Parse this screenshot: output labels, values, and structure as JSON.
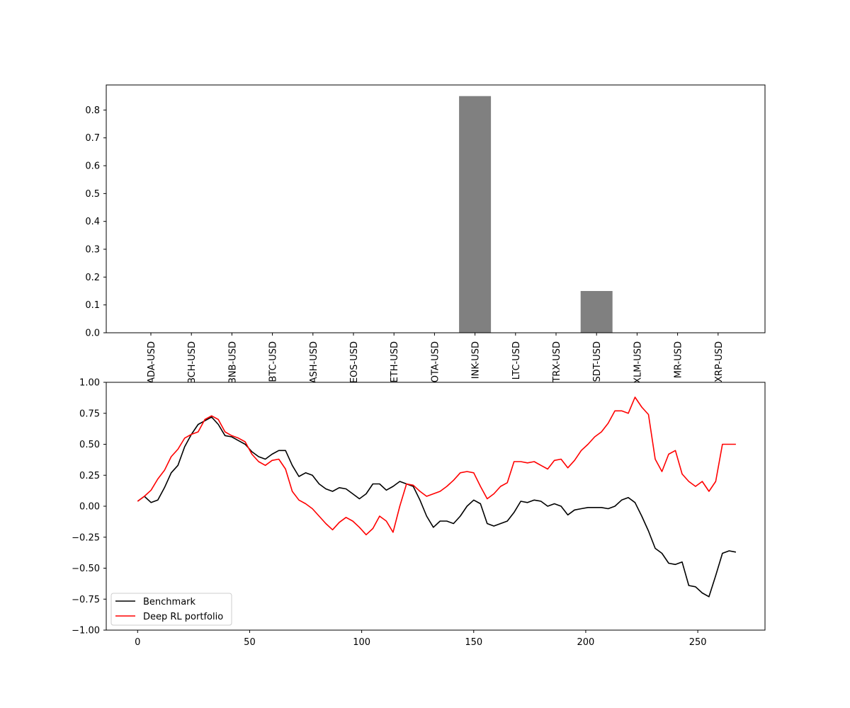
{
  "chart_data": [
    {
      "type": "bar",
      "categories": [
        "ADA-USD",
        "BCH-USD",
        "BNB-USD",
        "BTC-USD",
        "DASH-USD",
        "EOS-USD",
        "ETH-USD",
        "IOTA-USD",
        "LINK-USD",
        "LTC-USD",
        "TRX-USD",
        "USDT-USD",
        "XLM-USD",
        "XMR-USD",
        "XRP-USD"
      ],
      "tick_labels": [
        "ADA-USD",
        "BCH-USD",
        "BNB-USD",
        "BTC-USD",
        "ASH-USD",
        "EOS-USD",
        "ETH-USD",
        "OTA-USD",
        "INK-USD",
        "LTC-USD",
        "TRX-USD",
        "SDT-USD",
        "XLM-USD",
        "MR-USD",
        "XRP-USD"
      ],
      "values": [
        0,
        0,
        0,
        0,
        0,
        0,
        0,
        0,
        0.85,
        0,
        0,
        0.15,
        0,
        0,
        0
      ],
      "ylim": [
        0,
        0.89
      ],
      "yticks": [
        "0.0",
        "0.1",
        "0.2",
        "0.3",
        "0.4",
        "0.5",
        "0.6",
        "0.7",
        "0.8"
      ],
      "bar_color": "#808080",
      "grid": false
    },
    {
      "type": "line",
      "xlim": [
        -14,
        280
      ],
      "ylim": [
        -1.0,
        1.0
      ],
      "xticks": [
        "0",
        "50",
        "100",
        "150",
        "200",
        "250"
      ],
      "yticks": [
        "−1.00",
        "−0.75",
        "−0.50",
        "−0.25",
        "0.00",
        "0.25",
        "0.50",
        "0.75",
        "1.00"
      ],
      "legend_position": "lower-left",
      "grid": false,
      "series": [
        {
          "name": "Benchmark",
          "color": "#000000",
          "points": [
            [
              0,
              0.04
            ],
            [
              3,
              0.08
            ],
            [
              6,
              0.03
            ],
            [
              9,
              0.05
            ],
            [
              12,
              0.15
            ],
            [
              15,
              0.27
            ],
            [
              18,
              0.33
            ],
            [
              21,
              0.48
            ],
            [
              24,
              0.58
            ],
            [
              27,
              0.66
            ],
            [
              30,
              0.69
            ],
            [
              33,
              0.72
            ],
            [
              36,
              0.66
            ],
            [
              39,
              0.57
            ],
            [
              42,
              0.56
            ],
            [
              45,
              0.53
            ],
            [
              48,
              0.5
            ],
            [
              51,
              0.44
            ],
            [
              54,
              0.4
            ],
            [
              57,
              0.38
            ],
            [
              60,
              0.42
            ],
            [
              63,
              0.45
            ],
            [
              66,
              0.45
            ],
            [
              69,
              0.33
            ],
            [
              72,
              0.24
            ],
            [
              75,
              0.27
            ],
            [
              78,
              0.25
            ],
            [
              81,
              0.18
            ],
            [
              84,
              0.14
            ],
            [
              87,
              0.12
            ],
            [
              90,
              0.15
            ],
            [
              93,
              0.14
            ],
            [
              96,
              0.1
            ],
            [
              99,
              0.06
            ],
            [
              102,
              0.1
            ],
            [
              105,
              0.18
            ],
            [
              108,
              0.18
            ],
            [
              111,
              0.13
            ],
            [
              114,
              0.16
            ],
            [
              117,
              0.2
            ],
            [
              120,
              0.18
            ],
            [
              123,
              0.16
            ],
            [
              126,
              0.05
            ],
            [
              129,
              -0.08
            ],
            [
              132,
              -0.17
            ],
            [
              135,
              -0.12
            ],
            [
              138,
              -0.12
            ],
            [
              141,
              -0.14
            ],
            [
              144,
              -0.08
            ],
            [
              147,
              0.0
            ],
            [
              150,
              0.05
            ],
            [
              153,
              0.02
            ],
            [
              156,
              -0.14
            ],
            [
              159,
              -0.16
            ],
            [
              162,
              -0.14
            ],
            [
              165,
              -0.12
            ],
            [
              168,
              -0.05
            ],
            [
              171,
              0.04
            ],
            [
              174,
              0.03
            ],
            [
              177,
              0.05
            ],
            [
              180,
              0.04
            ],
            [
              183,
              0.0
            ],
            [
              186,
              0.02
            ],
            [
              189,
              0.0
            ],
            [
              192,
              -0.07
            ],
            [
              195,
              -0.03
            ],
            [
              198,
              -0.02
            ],
            [
              201,
              -0.01
            ],
            [
              204,
              -0.01
            ],
            [
              207,
              -0.01
            ],
            [
              210,
              -0.02
            ],
            [
              213,
              0.0
            ],
            [
              216,
              0.05
            ],
            [
              219,
              0.07
            ],
            [
              222,
              0.03
            ],
            [
              225,
              -0.08
            ],
            [
              228,
              -0.2
            ],
            [
              231,
              -0.34
            ],
            [
              234,
              -0.38
            ],
            [
              237,
              -0.46
            ],
            [
              240,
              -0.47
            ],
            [
              243,
              -0.45
            ],
            [
              246,
              -0.64
            ],
            [
              249,
              -0.65
            ],
            [
              252,
              -0.7
            ],
            [
              255,
              -0.73
            ],
            [
              258,
              -0.56
            ],
            [
              261,
              -0.38
            ],
            [
              264,
              -0.36
            ],
            [
              267,
              -0.37
            ]
          ]
        },
        {
          "name": "Deep RL portfolio",
          "color": "#ff0000",
          "points": [
            [
              0,
              0.04
            ],
            [
              3,
              0.08
            ],
            [
              6,
              0.13
            ],
            [
              9,
              0.22
            ],
            [
              12,
              0.29
            ],
            [
              15,
              0.4
            ],
            [
              18,
              0.46
            ],
            [
              21,
              0.55
            ],
            [
              24,
              0.58
            ],
            [
              27,
              0.6
            ],
            [
              30,
              0.7
            ],
            [
              33,
              0.73
            ],
            [
              36,
              0.7
            ],
            [
              39,
              0.6
            ],
            [
              42,
              0.57
            ],
            [
              45,
              0.55
            ],
            [
              48,
              0.52
            ],
            [
              51,
              0.42
            ],
            [
              54,
              0.36
            ],
            [
              57,
              0.33
            ],
            [
              60,
              0.37
            ],
            [
              63,
              0.38
            ],
            [
              66,
              0.3
            ],
            [
              69,
              0.12
            ],
            [
              72,
              0.05
            ],
            [
              75,
              0.02
            ],
            [
              78,
              -0.02
            ],
            [
              81,
              -0.08
            ],
            [
              84,
              -0.14
            ],
            [
              87,
              -0.19
            ],
            [
              90,
              -0.13
            ],
            [
              93,
              -0.09
            ],
            [
              96,
              -0.12
            ],
            [
              99,
              -0.17
            ],
            [
              102,
              -0.23
            ],
            [
              105,
              -0.18
            ],
            [
              108,
              -0.08
            ],
            [
              111,
              -0.12
            ],
            [
              114,
              -0.21
            ],
            [
              117,
              0.0
            ],
            [
              120,
              0.18
            ],
            [
              123,
              0.17
            ],
            [
              126,
              0.12
            ],
            [
              129,
              0.08
            ],
            [
              132,
              0.1
            ],
            [
              135,
              0.12
            ],
            [
              138,
              0.16
            ],
            [
              141,
              0.21
            ],
            [
              144,
              0.27
            ],
            [
              147,
              0.28
            ],
            [
              150,
              0.27
            ],
            [
              153,
              0.16
            ],
            [
              156,
              0.06
            ],
            [
              159,
              0.1
            ],
            [
              162,
              0.16
            ],
            [
              165,
              0.19
            ],
            [
              168,
              0.36
            ],
            [
              171,
              0.36
            ],
            [
              174,
              0.35
            ],
            [
              177,
              0.36
            ],
            [
              180,
              0.33
            ],
            [
              183,
              0.3
            ],
            [
              186,
              0.37
            ],
            [
              189,
              0.38
            ],
            [
              192,
              0.31
            ],
            [
              195,
              0.37
            ],
            [
              198,
              0.45
            ],
            [
              201,
              0.5
            ],
            [
              204,
              0.56
            ],
            [
              207,
              0.6
            ],
            [
              210,
              0.67
            ],
            [
              213,
              0.77
            ],
            [
              216,
              0.77
            ],
            [
              219,
              0.75
            ],
            [
              222,
              0.88
            ],
            [
              225,
              0.8
            ],
            [
              228,
              0.74
            ],
            [
              231,
              0.38
            ],
            [
              234,
              0.28
            ],
            [
              237,
              0.42
            ],
            [
              240,
              0.45
            ],
            [
              243,
              0.26
            ],
            [
              246,
              0.2
            ],
            [
              249,
              0.16
            ],
            [
              252,
              0.2
            ],
            [
              255,
              0.12
            ],
            [
              258,
              0.2
            ],
            [
              261,
              0.5
            ],
            [
              264,
              0.5
            ],
            [
              267,
              0.5
            ]
          ]
        }
      ]
    }
  ]
}
